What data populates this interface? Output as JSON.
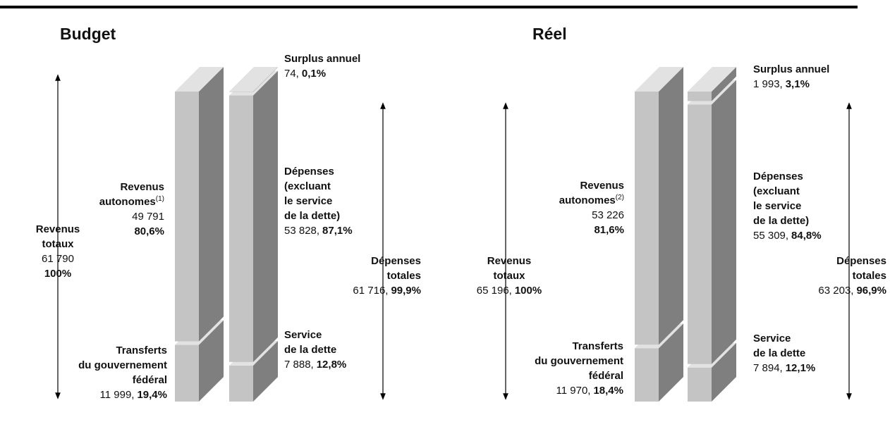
{
  "chart_data": [
    {
      "type": "bar3d",
      "title": "Budget",
      "columns": [
        {
          "segments": [
            {
              "name": [
                "Transferts",
                "du gouvernement",
                "fédéral"
              ],
              "value": 11999,
              "value_label": "11 999,",
              "share": 19.4,
              "share_label": "19,4%"
            },
            {
              "name": [
                "Revenus",
                "autonomes"
              ],
              "note": "(1)",
              "value": 49791,
              "value_label": "49 791",
              "share": 80.6,
              "share_label": "80,6%"
            }
          ]
        },
        {
          "segments": [
            {
              "name": [
                "Service",
                "de la dette"
              ],
              "value": 7888,
              "value_label": "7 888,",
              "share": 12.8,
              "share_label": "12,8%"
            },
            {
              "name": [
                "Dépenses",
                "(excluant",
                "le service",
                "de la dette)"
              ],
              "value": 53828,
              "value_label": "53 828,",
              "share": 87.1,
              "share_label": "87,1%"
            },
            {
              "name": [
                "Surplus annuel"
              ],
              "value": 74,
              "value_label": "74,",
              "share": 0.1,
              "share_label": "0,1%"
            }
          ]
        }
      ],
      "totals": [
        {
          "name": [
            "Revenus",
            "totaux"
          ],
          "value": 61790,
          "value_label": "61 790",
          "share": 100,
          "share_label": "100%"
        },
        {
          "name": [
            "Dépenses",
            "totales"
          ],
          "value": 61716,
          "value_label": "61 716,",
          "share": 99.9,
          "share_label": "99,9%"
        }
      ]
    },
    {
      "type": "bar3d",
      "title": "Réel",
      "columns": [
        {
          "segments": [
            {
              "name": [
                "Transferts",
                "du gouvernement",
                "fédéral"
              ],
              "value": 11970,
              "value_label": "11 970,",
              "share": 18.4,
              "share_label": "18,4%"
            },
            {
              "name": [
                "Revenus",
                "autonomes"
              ],
              "note": "(2)",
              "value": 53226,
              "value_label": "53 226",
              "share": 81.6,
              "share_label": "81,6%"
            }
          ]
        },
        {
          "segments": [
            {
              "name": [
                "Service",
                "de la dette"
              ],
              "value": 7894,
              "value_label": "7 894,",
              "share": 12.1,
              "share_label": "12,1%"
            },
            {
              "name": [
                "Dépenses",
                "(excluant",
                "le service",
                "de la dette)"
              ],
              "value": 55309,
              "value_label": "55 309,",
              "share": 84.8,
              "share_label": "84,8%"
            },
            {
              "name": [
                "Surplus annuel"
              ],
              "value": 1993,
              "value_label": "1 993,",
              "share": 3.1,
              "share_label": "3,1%"
            }
          ]
        }
      ],
      "totals": [
        {
          "name": [
            "Revenus",
            "totaux"
          ],
          "value": 65196,
          "value_label": "65 196,",
          "share": 100,
          "share_label": "100%"
        },
        {
          "name": [
            "Dépenses",
            "totales"
          ],
          "value": 63203,
          "value_label": "63 203,",
          "share": 96.9,
          "share_label": "96,9%"
        }
      ]
    }
  ]
}
